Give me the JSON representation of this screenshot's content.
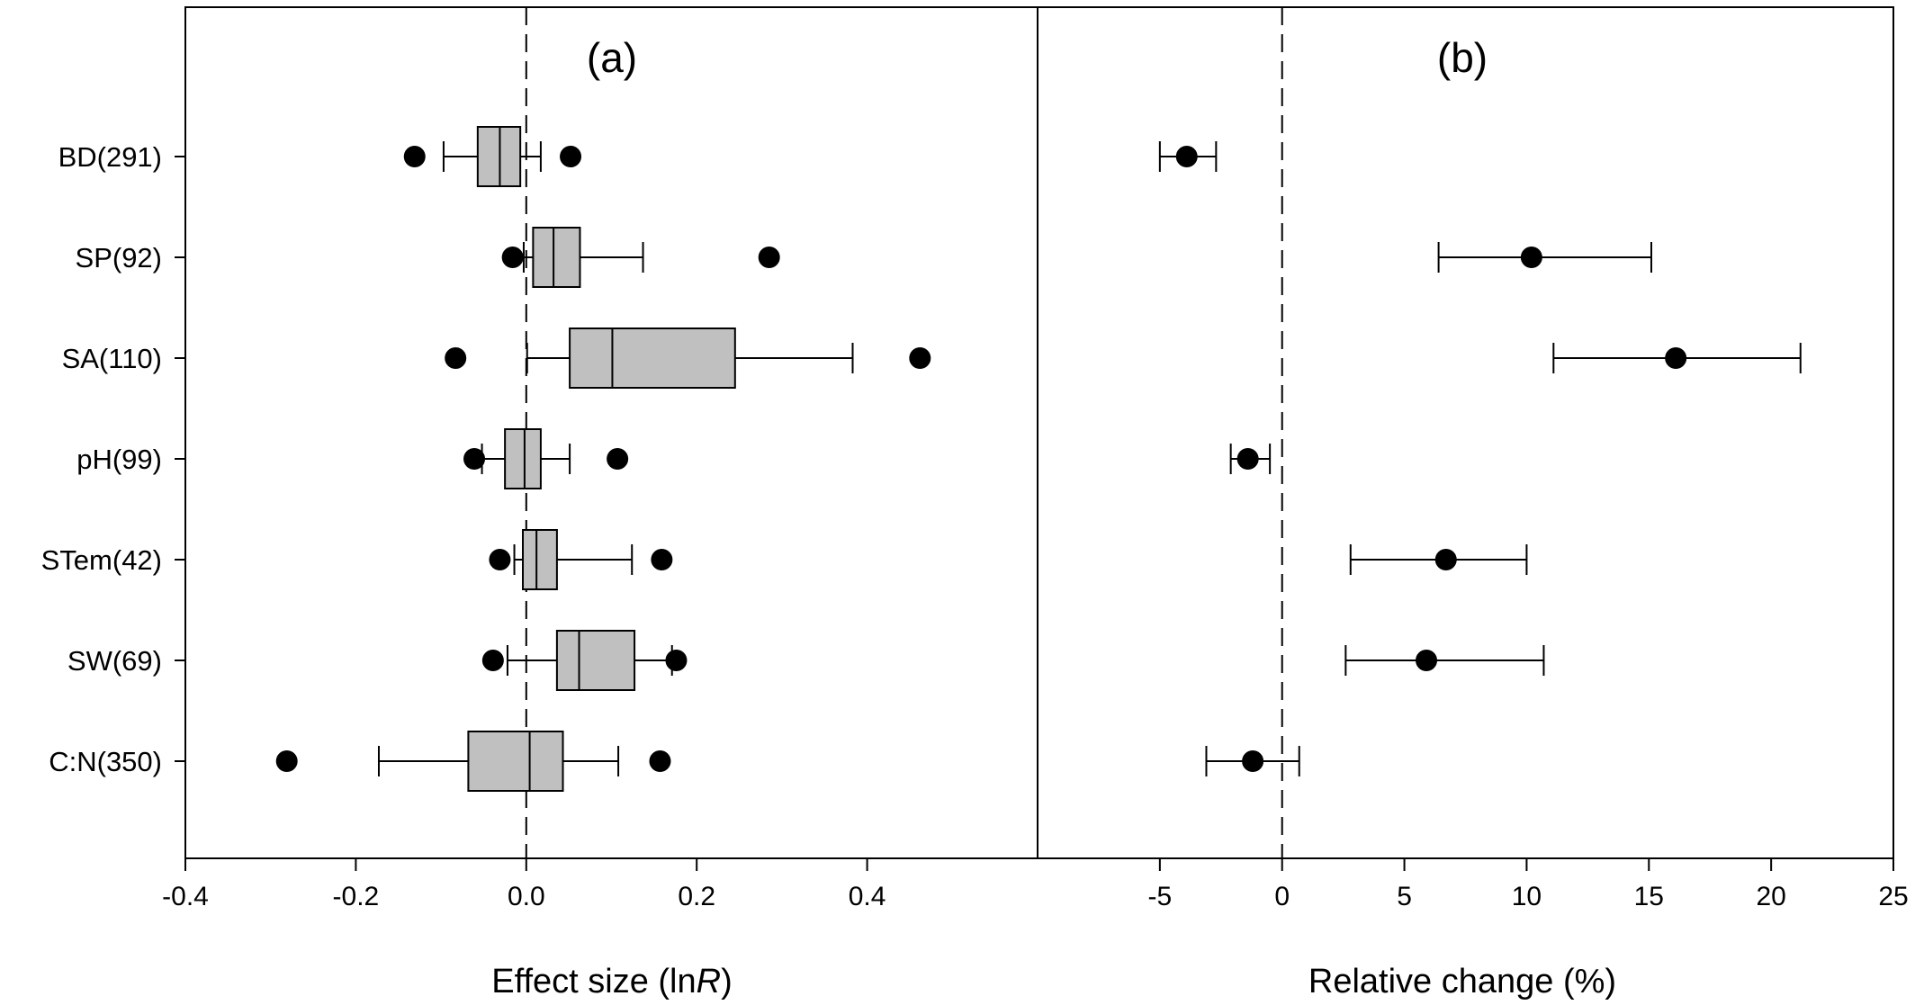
{
  "chart_data": [
    {
      "type": "box",
      "panel_label": "(a)",
      "xlabel_prefix": "Effect size (ln",
      "xlabel_italic": "R",
      "xlabel_suffix": ")",
      "xlim": [
        -0.4,
        0.6
      ],
      "xticks": [
        -0.4,
        -0.2,
        0.0,
        0.2,
        0.4
      ],
      "xtick_labels": [
        "-0.4",
        "-0.2",
        "0.0",
        "0.2",
        "0.4"
      ],
      "reference_line": 0,
      "categories": [
        "BD(291)",
        "SP(92)",
        "SA(110)",
        "pH(99)",
        "STem(42)",
        "SW(69)",
        "C:N(350)"
      ],
      "boxes": [
        {
          "whisker_low": -0.097,
          "q1": -0.057,
          "median": -0.031,
          "q3": -0.007,
          "whisker_high": 0.017,
          "outliers": [
            -0.131,
            0.052
          ]
        },
        {
          "whisker_low": -0.003,
          "q1": 0.008,
          "median": 0.032,
          "q3": 0.063,
          "whisker_high": 0.137,
          "outliers": [
            -0.016,
            0.285
          ]
        },
        {
          "whisker_low": 0.001,
          "q1": 0.051,
          "median": 0.101,
          "q3": 0.245,
          "whisker_high": 0.383,
          "outliers": [
            -0.083,
            0.462
          ]
        },
        {
          "whisker_low": -0.052,
          "q1": -0.025,
          "median": -0.002,
          "q3": 0.017,
          "whisker_high": 0.051,
          "outliers": [
            -0.061,
            0.107
          ]
        },
        {
          "whisker_low": -0.014,
          "q1": -0.004,
          "median": 0.012,
          "q3": 0.036,
          "whisker_high": 0.124,
          "outliers": [
            -0.031,
            0.159
          ]
        },
        {
          "whisker_low": -0.022,
          "q1": 0.036,
          "median": 0.062,
          "q3": 0.127,
          "whisker_high": 0.171,
          "outliers": [
            -0.039,
            0.176
          ]
        },
        {
          "whisker_low": -0.173,
          "q1": -0.068,
          "median": 0.004,
          "q3": 0.043,
          "whisker_high": 0.108,
          "outliers": [
            -0.281,
            0.157
          ]
        }
      ]
    },
    {
      "type": "forest",
      "panel_label": "(b)",
      "xlabel": "Relative change (%)",
      "xlim": [
        -10,
        25
      ],
      "xticks": [
        -5,
        0,
        5,
        10,
        15,
        20,
        25
      ],
      "xtick_labels": [
        "-5",
        "0",
        "5",
        "10",
        "15",
        "20",
        "25"
      ],
      "reference_line": 0,
      "categories": [
        "BD(291)",
        "SP(92)",
        "SA(110)",
        "pH(99)",
        "STem(42)",
        "SW(69)",
        "C:N(350)"
      ],
      "points": [
        {
          "mean": -3.9,
          "ci_low": -5.0,
          "ci_high": -2.7
        },
        {
          "mean": 10.2,
          "ci_low": 6.4,
          "ci_high": 15.1
        },
        {
          "mean": 16.1,
          "ci_low": 11.1,
          "ci_high": 21.2
        },
        {
          "mean": -1.4,
          "ci_low": -2.1,
          "ci_high": -0.5
        },
        {
          "mean": 6.7,
          "ci_low": 2.8,
          "ci_high": 10.0
        },
        {
          "mean": 5.9,
          "ci_low": 2.6,
          "ci_high": 10.7
        },
        {
          "mean": -1.2,
          "ci_low": -3.1,
          "ci_high": 0.7
        }
      ]
    }
  ],
  "colors": {
    "box_fill": "#c0c0c0",
    "stroke": "#000000",
    "marker": "#000000"
  }
}
